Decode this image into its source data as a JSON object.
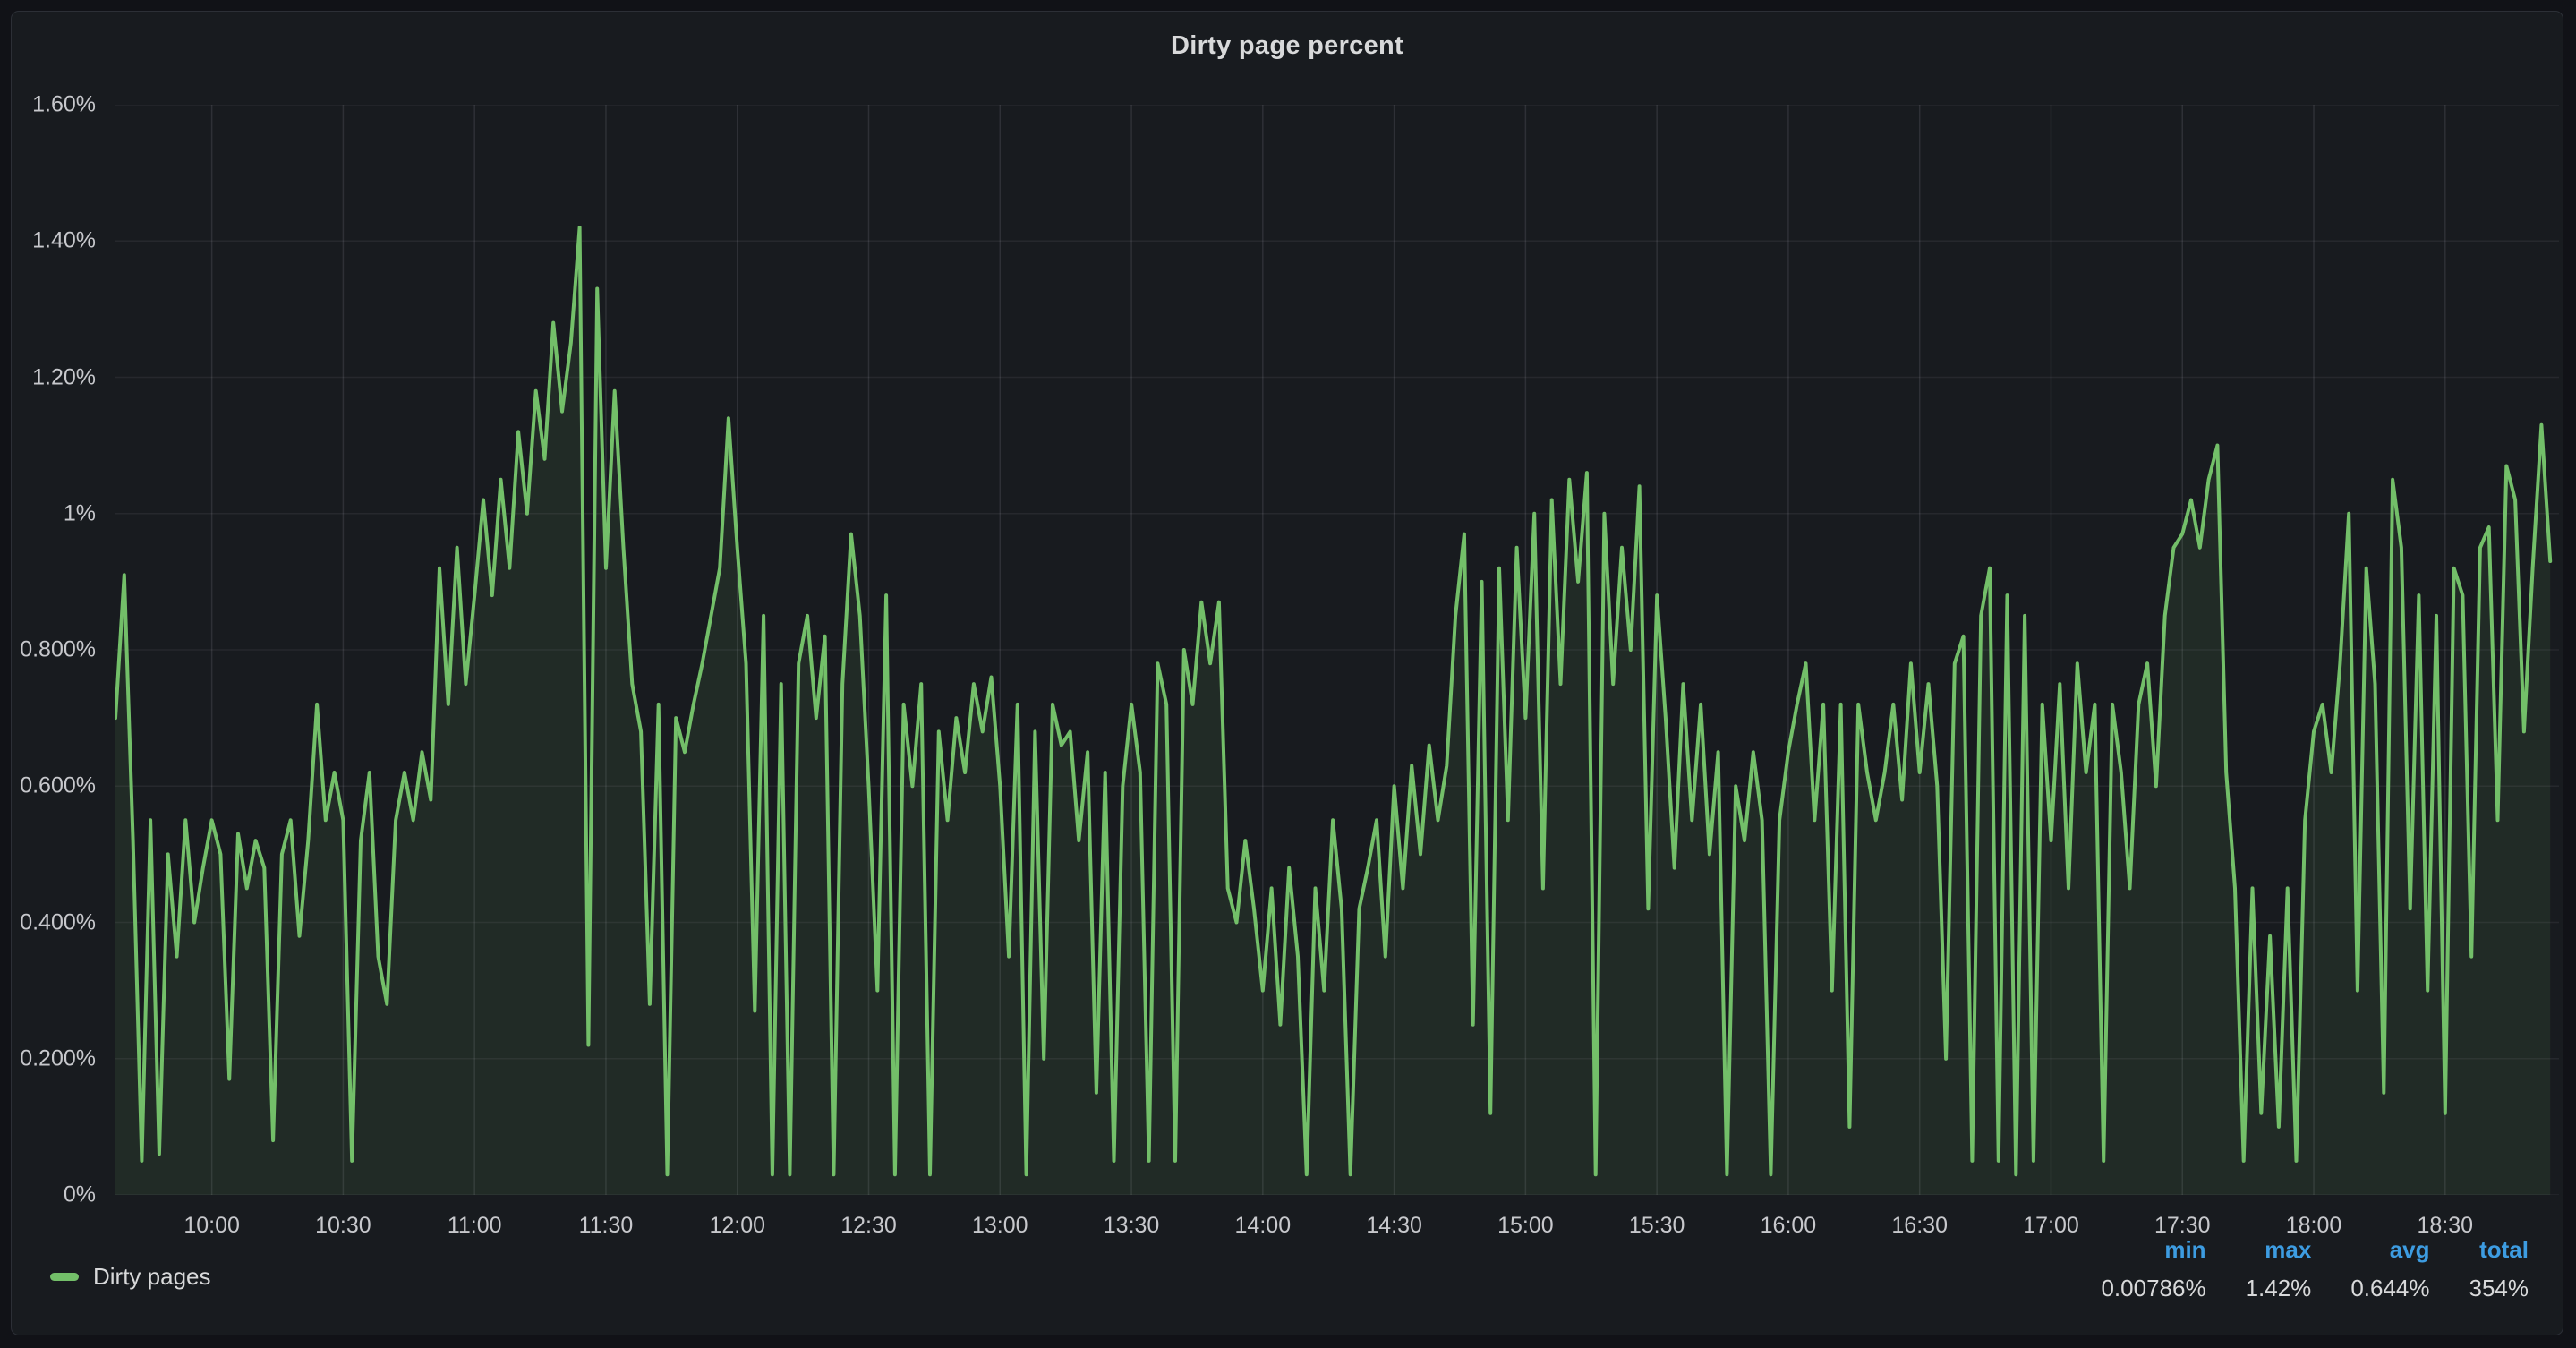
{
  "panel": {
    "title": "Dirty page percent"
  },
  "legend": {
    "series_label": "Dirty pages",
    "stats_headers": [
      "min",
      "max",
      "avg",
      "total"
    ],
    "stats_values": [
      "0.00786%",
      "1.42%",
      "0.644%",
      "354%"
    ]
  },
  "colors": {
    "page_bg": "#111217",
    "panel_bg": "#181b1f",
    "panel_border": "#2c2f36",
    "series_green": "#73bf69",
    "series_fill": "rgba(115,191,105,0.10)",
    "grid_h": "rgba(204,204,220,0.08)",
    "grid_v": "rgba(204,204,220,0.12)",
    "axis_text": "#c7c8cc",
    "title_text": "#d8d9da",
    "stat_header_blue": "#3d9ce1"
  },
  "chart_data": {
    "type": "area",
    "title": "Dirty page percent",
    "series_name": "Dirty pages",
    "unit": "percent",
    "ylim": [
      0,
      1.6
    ],
    "y_ticks": [
      0,
      0.2,
      0.4,
      0.6,
      0.8,
      1.0,
      1.2,
      1.4,
      1.6
    ],
    "y_tick_labels": [
      "0%",
      "0.200%",
      "0.400%",
      "0.600%",
      "0.800%",
      "1%",
      "1.20%",
      "1.40%",
      "1.60%"
    ],
    "x_tick_labels": [
      "10:00",
      "10:30",
      "11:00",
      "11:30",
      "12:00",
      "12:30",
      "13:00",
      "13:30",
      "14:00",
      "14:30",
      "15:00",
      "15:30",
      "16:00",
      "16:30",
      "17:00",
      "17:30",
      "18:00",
      "18:30"
    ],
    "x_tick_minutes": [
      600,
      630,
      660,
      690,
      720,
      750,
      780,
      810,
      840,
      870,
      900,
      930,
      960,
      990,
      1020,
      1050,
      1080,
      1110
    ],
    "x_start_minutes": 578,
    "x_end_minutes": 1136,
    "x_step_minutes": 2,
    "legend_position": "bottom",
    "grid": true,
    "stats": {
      "min": "0.00786%",
      "max": "1.42%",
      "avg": "0.644%",
      "total": "354%"
    },
    "values": [
      0.7,
      0.91,
      0.52,
      0.05,
      0.55,
      0.06,
      0.5,
      0.35,
      0.55,
      0.4,
      0.48,
      0.55,
      0.5,
      0.17,
      0.53,
      0.45,
      0.52,
      0.48,
      0.08,
      0.5,
      0.55,
      0.38,
      0.52,
      0.72,
      0.55,
      0.62,
      0.55,
      0.05,
      0.52,
      0.62,
      0.35,
      0.28,
      0.55,
      0.62,
      0.55,
      0.65,
      0.58,
      0.92,
      0.72,
      0.95,
      0.75,
      0.88,
      1.02,
      0.88,
      1.05,
      0.92,
      1.12,
      1.0,
      1.18,
      1.08,
      1.28,
      1.15,
      1.25,
      1.42,
      0.22,
      1.33,
      0.92,
      1.18,
      0.95,
      0.75,
      0.68,
      0.28,
      0.72,
      0.03,
      0.7,
      0.65,
      0.72,
      0.78,
      0.85,
      0.92,
      1.14,
      0.95,
      0.78,
      0.27,
      0.85,
      0.03,
      0.75,
      0.03,
      0.78,
      0.85,
      0.7,
      0.82,
      0.03,
      0.75,
      0.97,
      0.85,
      0.6,
      0.3,
      0.88,
      0.03,
      0.72,
      0.6,
      0.75,
      0.03,
      0.68,
      0.55,
      0.7,
      0.62,
      0.75,
      0.68,
      0.76,
      0.6,
      0.35,
      0.72,
      0.03,
      0.68,
      0.2,
      0.72,
      0.66,
      0.68,
      0.52,
      0.65,
      0.15,
      0.62,
      0.05,
      0.6,
      0.72,
      0.62,
      0.05,
      0.78,
      0.72,
      0.05,
      0.8,
      0.72,
      0.87,
      0.78,
      0.87,
      0.45,
      0.4,
      0.52,
      0.42,
      0.3,
      0.45,
      0.25,
      0.48,
      0.35,
      0.03,
      0.45,
      0.3,
      0.55,
      0.42,
      0.03,
      0.42,
      0.48,
      0.55,
      0.35,
      0.6,
      0.45,
      0.63,
      0.5,
      0.66,
      0.55,
      0.63,
      0.85,
      0.97,
      0.25,
      0.9,
      0.12,
      0.92,
      0.55,
      0.95,
      0.7,
      1.0,
      0.45,
      1.02,
      0.75,
      1.05,
      0.9,
      1.06,
      0.03,
      1.0,
      0.75,
      0.95,
      0.8,
      1.04,
      0.42,
      0.88,
      0.7,
      0.48,
      0.75,
      0.55,
      0.72,
      0.5,
      0.65,
      0.03,
      0.6,
      0.52,
      0.65,
      0.55,
      0.03,
      0.55,
      0.65,
      0.72,
      0.78,
      0.55,
      0.72,
      0.3,
      0.72,
      0.1,
      0.72,
      0.62,
      0.55,
      0.62,
      0.72,
      0.58,
      0.78,
      0.62,
      0.75,
      0.6,
      0.2,
      0.78,
      0.82,
      0.05,
      0.85,
      0.92,
      0.05,
      0.88,
      0.03,
      0.85,
      0.05,
      0.72,
      0.52,
      0.75,
      0.45,
      0.78,
      0.62,
      0.72,
      0.05,
      0.72,
      0.62,
      0.45,
      0.72,
      0.78,
      0.6,
      0.85,
      0.95,
      0.97,
      1.02,
      0.95,
      1.05,
      1.1,
      0.62,
      0.45,
      0.05,
      0.45,
      0.12,
      0.38,
      0.1,
      0.45,
      0.05,
      0.55,
      0.68,
      0.72,
      0.62,
      0.78,
      1.0,
      0.3,
      0.92,
      0.75,
      0.15,
      1.05,
      0.95,
      0.42,
      0.88,
      0.3,
      0.85,
      0.12,
      0.92,
      0.88,
      0.35,
      0.95,
      0.98,
      0.55,
      1.07,
      1.02,
      0.68,
      0.92,
      1.13,
      0.93
    ]
  }
}
